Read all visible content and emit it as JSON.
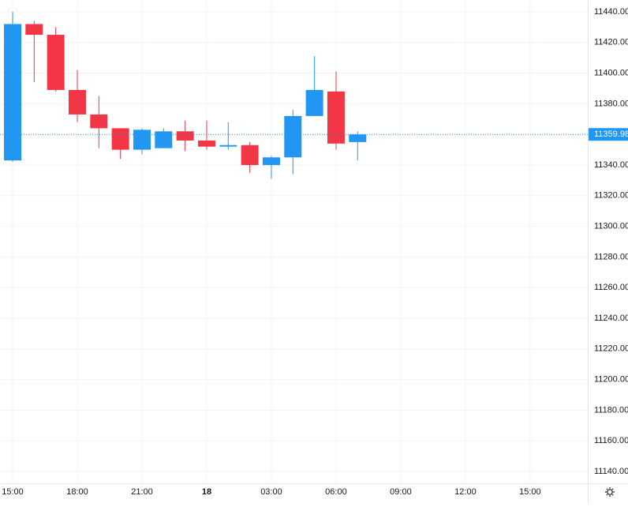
{
  "chart_data": {
    "type": "candlestick",
    "categories": [
      "15:00",
      null,
      null,
      "18:00",
      null,
      null,
      "21:00",
      null,
      null,
      "18",
      null,
      null,
      "03:00",
      null,
      null,
      "06:00",
      null,
      null,
      "09:00",
      null,
      null,
      "12:00",
      null,
      null,
      "15:00",
      null,
      null
    ],
    "open": [
      11343,
      11432,
      11425,
      11389,
      11373,
      11364,
      11350,
      11351,
      11362,
      11356,
      11352,
      11353,
      11340,
      11345,
      11372,
      11388,
      11355,
      null,
      null,
      null,
      null,
      null,
      null,
      null,
      null,
      null,
      null
    ],
    "high": [
      11440,
      11434,
      11430,
      11402,
      11385,
      11364,
      11364,
      11364,
      11369,
      11369,
      11368,
      11355,
      11346,
      11376,
      11411,
      11401,
      11362,
      null,
      null,
      null,
      null,
      null,
      null,
      null,
      null,
      null,
      null
    ],
    "low": [
      11342,
      11394,
      11388,
      11368,
      11351,
      11344,
      11347,
      11351,
      11349,
      11350,
      11350,
      11335,
      11331,
      11334,
      11372,
      11350,
      11343,
      null,
      null,
      null,
      null,
      null,
      null,
      null,
      null,
      null,
      null
    ],
    "close": [
      11432,
      11425,
      11389,
      11373,
      11364,
      11350,
      11363,
      11362,
      11356,
      11352,
      11353,
      11340,
      11345,
      11372,
      11389,
      11354,
      11359.98,
      null,
      null,
      null,
      null,
      null,
      null,
      null,
      null,
      null,
      null
    ],
    "up_color": "#2196f3",
    "down_color": "#f23645",
    "last_price": 11359.98,
    "ylim": [
      11132.3,
      11447.7
    ],
    "yticks": [
      {
        "value": 11140,
        "label": "11140.00"
      },
      {
        "value": 11160,
        "label": "11160.00"
      },
      {
        "value": 11180,
        "label": "11180.00"
      },
      {
        "value": 11200,
        "label": "11200.00"
      },
      {
        "value": 11220,
        "label": "11220.00"
      },
      {
        "value": 11240,
        "label": "11240.00"
      },
      {
        "value": 11260,
        "label": "11260.00"
      },
      {
        "value": 11280,
        "label": "11280.00"
      },
      {
        "value": 11300,
        "label": "11300.00"
      },
      {
        "value": 11320,
        "label": "11320.00"
      },
      {
        "value": 11340,
        "label": "11340.00"
      },
      {
        "value": 11360,
        "label": "11360.00"
      },
      {
        "value": 11380,
        "label": "11380.00"
      },
      {
        "value": 11400,
        "label": "11400.00"
      },
      {
        "value": 11420,
        "label": "11420.00"
      },
      {
        "value": 11440,
        "label": "11440.00"
      }
    ],
    "grid": true
  }
}
